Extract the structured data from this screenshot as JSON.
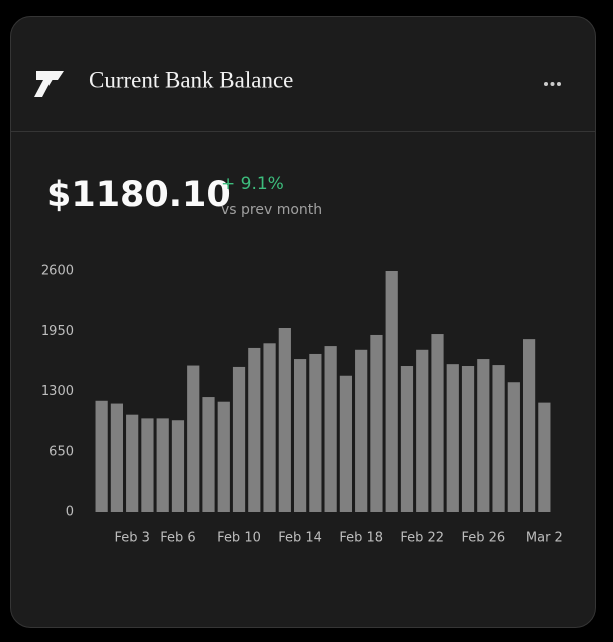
{
  "header": {
    "title": "Current Bank Balance"
  },
  "summary": {
    "balance": "$1180.10",
    "change": "+ 9.1%",
    "change_label": "vs prev month"
  },
  "chart_data": {
    "type": "bar",
    "categories": [
      null,
      null,
      "Feb 3",
      null,
      null,
      "Feb 6",
      null,
      null,
      null,
      "Feb 10",
      null,
      null,
      null,
      "Feb 14",
      null,
      null,
      null,
      "Feb 18",
      null,
      null,
      null,
      "Feb 22",
      null,
      null,
      null,
      "Feb 26",
      null,
      null,
      null,
      "Mar 2"
    ],
    "values": [
      1200,
      1170,
      1050,
      1010,
      1010,
      990,
      1580,
      1240,
      1190,
      1565,
      1770,
      1820,
      1985,
      1650,
      1705,
      1790,
      1470,
      1750,
      1910,
      2600,
      1575,
      1750,
      1920,
      1595,
      1575,
      1650,
      1585,
      1400,
      1865,
      1180
    ],
    "color": "#808080",
    "ylim": [
      0,
      2600
    ],
    "yticks": [
      0,
      650,
      1300,
      1950,
      2600
    ],
    "grid": false
  }
}
